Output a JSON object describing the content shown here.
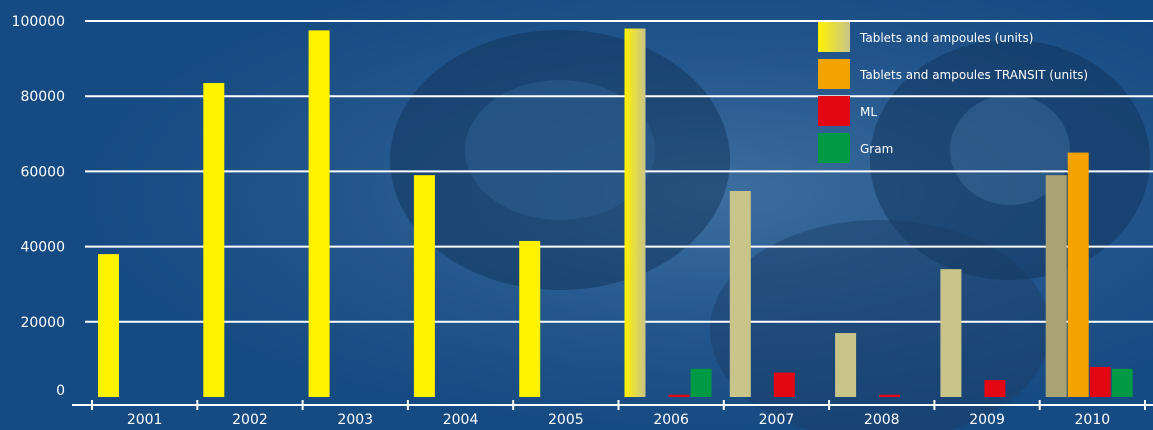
{
  "chart_data": {
    "type": "bar",
    "title": "",
    "xlabel": "",
    "ylabel": "",
    "ylim": [
      0,
      100000
    ],
    "yticks": [
      0,
      20000,
      40000,
      60000,
      80000,
      100000
    ],
    "grid": true,
    "legend_position": "top-right",
    "categories": [
      "2001",
      "2002",
      "2003",
      "2004",
      "2005",
      "2006",
      "2007",
      "2008",
      "2009",
      "2010"
    ],
    "series": [
      {
        "name": "Tablets and ampoules (units)",
        "color": "#fff200",
        "values": [
          38000,
          83500,
          97500,
          59000,
          41500,
          98000,
          54800,
          17000,
          34000,
          59000
        ]
      },
      {
        "name": "Tablets and ampoules TRANSIT (units)",
        "color": "#f5a300",
        "values": [
          0,
          0,
          0,
          0,
          0,
          0,
          0,
          0,
          0,
          65000
        ]
      },
      {
        "name": "ML",
        "color": "#e30613",
        "values": [
          0,
          0,
          0,
          0,
          0,
          600,
          6500,
          600,
          4500,
          8000
        ]
      },
      {
        "name": "Gram",
        "color": "#009a44",
        "values": [
          0,
          0,
          0,
          0,
          0,
          7500,
          0,
          0,
          0,
          7500
        ]
      }
    ]
  }
}
